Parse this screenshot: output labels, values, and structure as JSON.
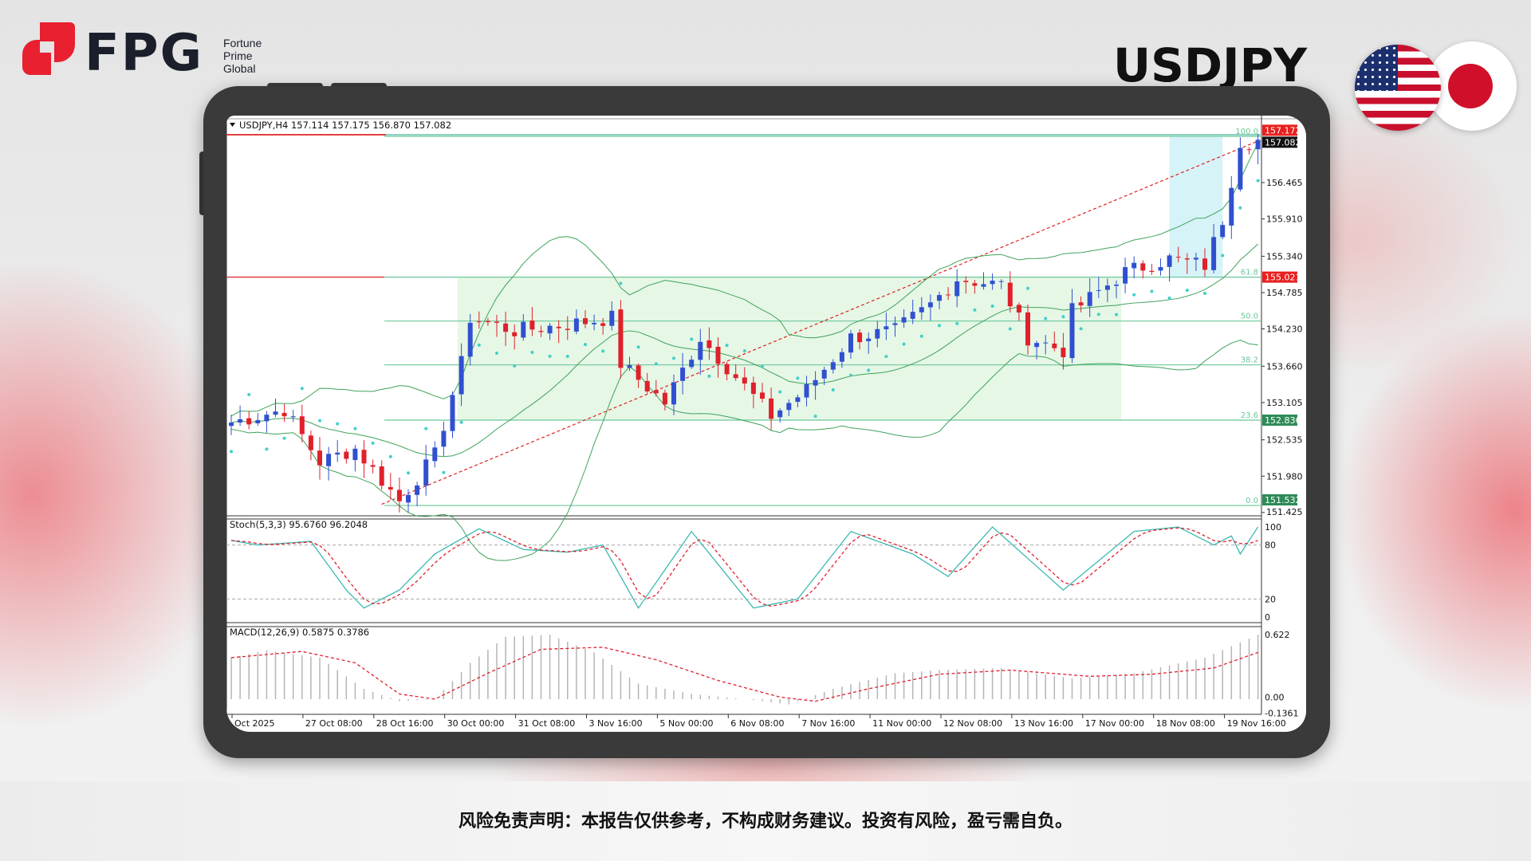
{
  "brand": {
    "name": "FPG",
    "sub": [
      "Fortune",
      "Prime",
      "Global"
    ],
    "color": "#e8202f"
  },
  "pair_title": "USDJPY",
  "disclaimer": "风险免责声明：本报告仅供参考，不构成财务建议。投资有风险，盈亏需自负。",
  "chart": {
    "header": "USDJPY,H4  157.114 157.175 156.870 157.082",
    "price_min": 151.425,
    "price_max": 157.172,
    "price_ticks": [
      "156.465",
      "155.910",
      "155.340",
      "154.785",
      "154.230",
      "153.660",
      "153.105",
      "152.535",
      "151.980",
      "151.425"
    ],
    "badges": [
      {
        "v": "157.172",
        "c": "#e8201e"
      },
      {
        "v": "157.082",
        "c": "#111111"
      },
      {
        "v": "155.021",
        "c": "#e8201e"
      },
      {
        "v": "152.836",
        "c": "#2e8b57"
      },
      {
        "v": "151.532",
        "c": "#2e8b57"
      }
    ],
    "fib": [
      {
        "label": "100.0",
        "p": 157.172
      },
      {
        "label": "61.8",
        "p": 155.021
      },
      {
        "label": "50.0",
        "p": 154.35
      },
      {
        "label": "38.2",
        "p": 153.68
      },
      {
        "label": "23.6",
        "p": 152.836
      },
      {
        "label": "0.0",
        "p": 151.532
      }
    ],
    "close_path": [
      [
        0,
        152.8
      ],
      [
        6,
        153.0
      ],
      [
        10,
        152.2
      ],
      [
        14,
        152.4
      ],
      [
        19,
        151.6
      ],
      [
        23,
        152.3
      ],
      [
        26,
        153.7
      ],
      [
        27,
        154.4
      ],
      [
        32,
        154.2
      ],
      [
        38,
        154.3
      ],
      [
        43,
        154.4
      ],
      [
        44,
        153.7
      ],
      [
        49,
        153.1
      ],
      [
        53,
        154.1
      ],
      [
        59,
        153.2
      ],
      [
        61,
        152.9
      ],
      [
        65,
        153.3
      ],
      [
        70,
        154.1
      ],
      [
        75,
        154.2
      ],
      [
        79,
        154.6
      ],
      [
        82,
        155.0
      ],
      [
        87,
        154.9
      ],
      [
        90,
        154.1
      ],
      [
        94,
        153.9
      ],
      [
        95,
        154.5
      ],
      [
        101,
        155.1
      ],
      [
        106,
        155.3
      ],
      [
        110,
        155.2
      ],
      [
        112,
        155.9
      ],
      [
        114,
        157.1
      ],
      [
        115,
        157.082
      ]
    ],
    "bull_color": "#3050d0",
    "bear_color": "#e0202a",
    "time_labels": [
      "Oct 2025",
      "27 Oct 08:00",
      "28 Oct 16:00",
      "30 Oct 00:00",
      "31 Oct 08:00",
      "3 Nov 16:00",
      "5 Nov 00:00",
      "6 Nov 08:00",
      "7 Nov 16:00",
      "11 Nov 00:00",
      "12 Nov 08:00",
      "13 Nov 16:00",
      "17 Nov 00:00",
      "18 Nov 08:00",
      "19 Nov 16:00"
    ]
  },
  "stoch": {
    "label": "Stoch(5,3,3) 95.6760 96.2048",
    "levels": [
      "100",
      "80",
      "20",
      "0"
    ],
    "k_path": [
      [
        0,
        85
      ],
      [
        3,
        80
      ],
      [
        9,
        84
      ],
      [
        13,
        30
      ],
      [
        15,
        10
      ],
      [
        19,
        30
      ],
      [
        23,
        70
      ],
      [
        28,
        98
      ],
      [
        33,
        75
      ],
      [
        38,
        72
      ],
      [
        42,
        80
      ],
      [
        46,
        10
      ],
      [
        52,
        95
      ],
      [
        59,
        10
      ],
      [
        64,
        20
      ],
      [
        70,
        95
      ],
      [
        77,
        70
      ],
      [
        81,
        45
      ],
      [
        86,
        100
      ],
      [
        94,
        30
      ],
      [
        102,
        95
      ],
      [
        107,
        100
      ],
      [
        111,
        80
      ],
      [
        113,
        90
      ],
      [
        114,
        70
      ],
      [
        116,
        100
      ]
    ]
  },
  "macd": {
    "label": "MACD(12,26,9) 0.5875 0.3786",
    "ticks": [
      "0.622",
      "0.00",
      "-0.1361"
    ],
    "hist_path": [
      [
        0,
        0.4
      ],
      [
        4,
        0.47
      ],
      [
        10,
        0.4
      ],
      [
        15,
        0.1
      ],
      [
        19,
        -0.02
      ],
      [
        23,
        0.0
      ],
      [
        27,
        0.35
      ],
      [
        31,
        0.6
      ],
      [
        36,
        0.62
      ],
      [
        41,
        0.45
      ],
      [
        46,
        0.15
      ],
      [
        52,
        0.05
      ],
      [
        58,
        0.0
      ],
      [
        63,
        -0.05
      ],
      [
        68,
        0.1
      ],
      [
        75,
        0.25
      ],
      [
        80,
        0.28
      ],
      [
        87,
        0.3
      ],
      [
        95,
        0.2
      ],
      [
        102,
        0.25
      ],
      [
        110,
        0.4
      ],
      [
        116,
        0.62
      ]
    ],
    "signal_path": [
      [
        0,
        0.4
      ],
      [
        8,
        0.46
      ],
      [
        14,
        0.35
      ],
      [
        19,
        0.05
      ],
      [
        23,
        0.0
      ],
      [
        29,
        0.25
      ],
      [
        35,
        0.48
      ],
      [
        42,
        0.5
      ],
      [
        48,
        0.38
      ],
      [
        55,
        0.18
      ],
      [
        62,
        0.02
      ],
      [
        66,
        -0.02
      ],
      [
        72,
        0.1
      ],
      [
        80,
        0.24
      ],
      [
        88,
        0.28
      ],
      [
        97,
        0.22
      ],
      [
        104,
        0.24
      ],
      [
        111,
        0.3
      ],
      [
        116,
        0.45
      ]
    ]
  }
}
